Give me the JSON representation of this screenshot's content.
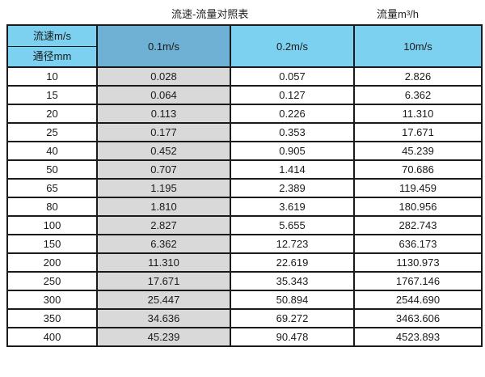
{
  "page": {
    "title_left": "流速-流量对照表",
    "title_right": "流量m³/h"
  },
  "chart_data": {
    "type": "table",
    "title": "流速-流量对照表",
    "flow_unit_label": "流量m³/h",
    "corner_header": {
      "top": "流速m/s",
      "bottom": "通径mm"
    },
    "velocity_columns": [
      "0.1m/s",
      "0.2m/s",
      "10m/s"
    ],
    "rows": [
      {
        "diameter_mm": "10",
        "values": [
          "0.028",
          "0.057",
          "2.826"
        ]
      },
      {
        "diameter_mm": "15",
        "values": [
          "0.064",
          "0.127",
          "6.362"
        ]
      },
      {
        "diameter_mm": "20",
        "values": [
          "0.113",
          "0.226",
          "11.310"
        ]
      },
      {
        "diameter_mm": "25",
        "values": [
          "0.177",
          "0.353",
          "17.671"
        ]
      },
      {
        "diameter_mm": "40",
        "values": [
          "0.452",
          "0.905",
          "45.239"
        ]
      },
      {
        "diameter_mm": "50",
        "values": [
          "0.707",
          "1.414",
          "70.686"
        ]
      },
      {
        "diameter_mm": "65",
        "values": [
          "1.195",
          "2.389",
          "119.459"
        ]
      },
      {
        "diameter_mm": "80",
        "values": [
          "1.810",
          "3.619",
          "180.956"
        ]
      },
      {
        "diameter_mm": "100",
        "values": [
          "2.827",
          "5.655",
          "282.743"
        ]
      },
      {
        "diameter_mm": "150",
        "values": [
          "6.362",
          "12.723",
          "636.173"
        ]
      },
      {
        "diameter_mm": "200",
        "values": [
          "11.310",
          "22.619",
          "1130.973"
        ]
      },
      {
        "diameter_mm": "250",
        "values": [
          "17.671",
          "35.343",
          "1767.146"
        ]
      },
      {
        "diameter_mm": "300",
        "values": [
          "25.447",
          "50.894",
          "2544.690"
        ]
      },
      {
        "diameter_mm": "350",
        "values": [
          "34.636",
          "69.272",
          "3463.606"
        ]
      },
      {
        "diameter_mm": "400",
        "values": [
          "45.239",
          "90.478",
          "4523.893"
        ]
      }
    ]
  },
  "colors": {
    "header_blue": "#7DD1F0",
    "header_blue_dark": "#6FB1D4",
    "gray_column": "#D9D9D9",
    "border": "#1A1A1A",
    "text": "#1A1A1A"
  }
}
